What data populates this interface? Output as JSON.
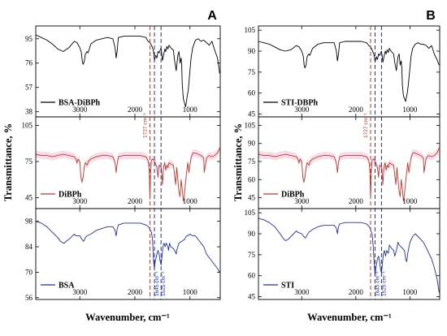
{
  "chart_data": [
    {
      "type": "line",
      "panel_label": "A",
      "xlabel": "Wavenumber, cm⁻¹",
      "ylabel": "Transmittance, %",
      "xlim": [
        3800,
        450
      ],
      "xticks": [
        3000,
        2000,
        1000
      ],
      "grid": false,
      "legend_position": "bottom-left",
      "annotations": [
        {
          "text": "1727 cm⁻¹",
          "x": 1727,
          "panel": 2,
          "color": "#c0392b"
        },
        {
          "text": "1645 cm⁻¹",
          "x": 1645,
          "panel": 3,
          "color": "#1f2fa0"
        },
        {
          "text": "1525 cm⁻¹",
          "x": 1525,
          "panel": 3,
          "color": "#1f2fa0"
        }
      ],
      "vlines": [
        {
          "x": 1727,
          "color": "#c0392b"
        },
        {
          "x": 1645,
          "color": "#1f2fa0"
        },
        {
          "x": 1525,
          "color": "#1f2fa0"
        }
      ],
      "subplots": [
        {
          "name": "BSA-DiBPh",
          "color": "#000000",
          "band": false,
          "ylim": [
            34,
            105
          ],
          "yticks": [
            38,
            57,
            76,
            95
          ],
          "x": [
            3800,
            3700,
            3600,
            3500,
            3400,
            3300,
            3200,
            3100,
            3050,
            3000,
            2970,
            2955,
            2940,
            2920,
            2900,
            2870,
            2850,
            2800,
            2700,
            2600,
            2500,
            2400,
            2360,
            2340,
            2320,
            2300,
            2200,
            2100,
            2000,
            1900,
            1800,
            1760,
            1727,
            1700,
            1680,
            1660,
            1645,
            1620,
            1600,
            1580,
            1560,
            1525,
            1500,
            1480,
            1455,
            1440,
            1420,
            1400,
            1380,
            1350,
            1300,
            1280,
            1250,
            1220,
            1200,
            1180,
            1160,
            1150,
            1140,
            1120,
            1100,
            1080,
            1070,
            1050,
            1030,
            1000,
            980,
            950,
            900,
            850,
            800,
            750,
            700,
            650,
            600,
            550,
            500,
            460
          ],
          "y": [
            98,
            96,
            94,
            91,
            87,
            85,
            88,
            93,
            92,
            88,
            84,
            77,
            75,
            77,
            83,
            85,
            84,
            91,
            94,
            95,
            96,
            95,
            88,
            80,
            86,
            96,
            97,
            97,
            97,
            97,
            96,
            93,
            92,
            90,
            88,
            85,
            78,
            82,
            80,
            85,
            84,
            88,
            78,
            82,
            87,
            85,
            89,
            87,
            90,
            88,
            86,
            78,
            70,
            82,
            85,
            76,
            80,
            74,
            60,
            48,
            45,
            42,
            44,
            50,
            55,
            70,
            80,
            88,
            94,
            95,
            93,
            94,
            92,
            90,
            93,
            86,
            80,
            68
          ]
        },
        {
          "name": "DiBPh",
          "color": "#c0392b",
          "band": true,
          "ylim": [
            36,
            112
          ],
          "yticks": [
            45,
            75,
            105
          ],
          "x": [
            3800,
            3700,
            3600,
            3500,
            3400,
            3300,
            3200,
            3100,
            3070,
            3050,
            3030,
            3000,
            2980,
            2960,
            2940,
            2920,
            2900,
            2880,
            2860,
            2850,
            2800,
            2700,
            2600,
            2500,
            2400,
            2360,
            2340,
            2320,
            2300,
            2200,
            2100,
            2000,
            1900,
            1800,
            1760,
            1740,
            1727,
            1715,
            1700,
            1680,
            1650,
            1600,
            1580,
            1560,
            1520,
            1500,
            1480,
            1460,
            1440,
            1420,
            1400,
            1380,
            1350,
            1300,
            1280,
            1260,
            1240,
            1200,
            1180,
            1160,
            1140,
            1120,
            1100,
            1080,
            1070,
            1050,
            1040,
            1020,
            1000,
            980,
            950,
            900,
            850,
            800,
            750,
            740,
            700,
            650,
            600,
            550,
            500,
            460
          ],
          "y": [
            81,
            80,
            80,
            79,
            80,
            81,
            80,
            79,
            77,
            74,
            77,
            75,
            62,
            58,
            62,
            70,
            74,
            73,
            72,
            75,
            77,
            79,
            80,
            80,
            79,
            74,
            66,
            74,
            79,
            80,
            80,
            80,
            80,
            79,
            76,
            68,
            44,
            66,
            76,
            77,
            76,
            70,
            62,
            72,
            70,
            56,
            70,
            74,
            68,
            72,
            70,
            74,
            73,
            72,
            64,
            56,
            70,
            50,
            46,
            60,
            52,
            42,
            48,
            58,
            62,
            70,
            74,
            66,
            72,
            78,
            82,
            82,
            81,
            80,
            78,
            66,
            78,
            80,
            79,
            80,
            82,
            86
          ]
        },
        {
          "name": "BSA",
          "color": "#1f2fa0",
          "band": false,
          "ylim": [
            55,
            105
          ],
          "yticks": [
            56,
            70,
            84,
            98
          ],
          "x": [
            3800,
            3700,
            3600,
            3500,
            3400,
            3350,
            3300,
            3280,
            3250,
            3200,
            3100,
            3070,
            3000,
            2960,
            2930,
            2900,
            2870,
            2800,
            2700,
            2600,
            2500,
            2400,
            2360,
            2340,
            2320,
            2300,
            2200,
            2100,
            2000,
            1900,
            1800,
            1750,
            1700,
            1680,
            1660,
            1645,
            1630,
            1600,
            1580,
            1560,
            1540,
            1525,
            1510,
            1490,
            1470,
            1450,
            1430,
            1400,
            1390,
            1370,
            1350,
            1300,
            1280,
            1250,
            1240,
            1220,
            1200,
            1150,
            1100,
            1080,
            1060,
            1040,
            1000,
            950,
            900,
            850,
            800,
            750,
            700,
            650,
            600,
            550,
            500,
            460
          ],
          "y": [
            98,
            97,
            95,
            92,
            89,
            87,
            86,
            86,
            87,
            88,
            91,
            90,
            90,
            88,
            87,
            89,
            90,
            91,
            93,
            94,
            95,
            95,
            93,
            90,
            94,
            96,
            97,
            97,
            97,
            97,
            96,
            95,
            92,
            88,
            76,
            72,
            76,
            80,
            82,
            80,
            76,
            74,
            78,
            84,
            86,
            84,
            86,
            84,
            82,
            86,
            84,
            83,
            82,
            80,
            82,
            84,
            86,
            87,
            88,
            89,
            90,
            90,
            91,
            90,
            90,
            88,
            86,
            84,
            80,
            78,
            76,
            74,
            72,
            70
          ]
        }
      ]
    },
    {
      "type": "line",
      "panel_label": "B",
      "xlabel": "Wavenumber, cm⁻¹",
      "ylabel": "Transmittance, %",
      "xlim": [
        3800,
        450
      ],
      "xticks": [
        3000,
        2000,
        1000
      ],
      "grid": false,
      "legend_position": "bottom-left",
      "annotations": [
        {
          "text": "1727 cm⁻¹",
          "x": 1727,
          "panel": 2,
          "color": "#c0392b"
        },
        {
          "text": "1645 cm⁻¹",
          "x": 1645,
          "panel": 3,
          "color": "#1f2fa0"
        },
        {
          "text": "1525 cm⁻¹",
          "x": 1525,
          "panel": 3,
          "color": "#1f2fa0"
        }
      ],
      "vlines": [
        {
          "x": 1727,
          "color": "#c0392b"
        },
        {
          "x": 1645,
          "color": "#1f2fa0"
        },
        {
          "x": 1525,
          "color": "#1f2fa0"
        }
      ],
      "subplots": [
        {
          "name": "STI-DBPh",
          "color": "#000000",
          "band": false,
          "ylim": [
            43,
            108
          ],
          "yticks": [
            45,
            60,
            75,
            90,
            105
          ],
          "x": [
            3800,
            3700,
            3600,
            3500,
            3400,
            3300,
            3200,
            3100,
            3050,
            3000,
            2970,
            2955,
            2940,
            2920,
            2900,
            2870,
            2850,
            2800,
            2700,
            2600,
            2500,
            2400,
            2360,
            2340,
            2320,
            2300,
            2200,
            2100,
            2000,
            1900,
            1800,
            1760,
            1727,
            1700,
            1680,
            1660,
            1645,
            1620,
            1600,
            1580,
            1560,
            1525,
            1500,
            1480,
            1455,
            1440,
            1420,
            1400,
            1380,
            1350,
            1300,
            1280,
            1250,
            1220,
            1200,
            1180,
            1160,
            1150,
            1140,
            1120,
            1100,
            1080,
            1070,
            1050,
            1030,
            1000,
            980,
            950,
            900,
            850,
            800,
            750,
            700,
            650,
            600,
            550,
            500,
            460
          ],
          "y": [
            97,
            96,
            95,
            93,
            91,
            90,
            91,
            94,
            93,
            90,
            86,
            80,
            78,
            80,
            86,
            88,
            87,
            92,
            95,
            96,
            96,
            96,
            90,
            83,
            88,
            96,
            97,
            97,
            97,
            97,
            96,
            94,
            93,
            91,
            89,
            87,
            82,
            86,
            84,
            88,
            87,
            90,
            82,
            86,
            90,
            88,
            91,
            89,
            92,
            90,
            88,
            82,
            76,
            86,
            88,
            80,
            83,
            78,
            66,
            58,
            56,
            54,
            56,
            60,
            66,
            78,
            86,
            92,
            95,
            96,
            95,
            95,
            94,
            92,
            94,
            88,
            84,
            80
          ]
        },
        {
          "name": "DiBPh",
          "color": "#c0392b",
          "band": true,
          "ylim": [
            36,
            112
          ],
          "yticks": [
            45,
            60,
            75,
            90,
            105
          ],
          "x": [
            3800,
            3700,
            3600,
            3500,
            3400,
            3300,
            3200,
            3100,
            3070,
            3050,
            3030,
            3000,
            2980,
            2960,
            2940,
            2920,
            2900,
            2880,
            2860,
            2850,
            2800,
            2700,
            2600,
            2500,
            2400,
            2360,
            2340,
            2320,
            2300,
            2200,
            2100,
            2000,
            1900,
            1800,
            1760,
            1740,
            1727,
            1715,
            1700,
            1680,
            1650,
            1600,
            1580,
            1560,
            1520,
            1500,
            1480,
            1460,
            1440,
            1420,
            1400,
            1380,
            1350,
            1300,
            1280,
            1260,
            1240,
            1200,
            1180,
            1160,
            1140,
            1120,
            1100,
            1080,
            1070,
            1050,
            1040,
            1020,
            1000,
            980,
            950,
            900,
            850,
            800,
            750,
            740,
            700,
            650,
            600,
            550,
            500,
            460
          ],
          "y": [
            81,
            80,
            80,
            79,
            80,
            81,
            80,
            79,
            77,
            74,
            77,
            75,
            62,
            58,
            62,
            70,
            74,
            73,
            72,
            75,
            77,
            79,
            80,
            80,
            79,
            74,
            66,
            74,
            79,
            80,
            80,
            80,
            80,
            79,
            76,
            68,
            44,
            66,
            76,
            77,
            76,
            70,
            62,
            72,
            70,
            56,
            70,
            74,
            68,
            72,
            70,
            74,
            73,
            72,
            64,
            56,
            70,
            50,
            46,
            60,
            52,
            42,
            48,
            58,
            62,
            70,
            74,
            66,
            72,
            78,
            82,
            82,
            81,
            80,
            78,
            66,
            78,
            80,
            79,
            80,
            82,
            86
          ]
        },
        {
          "name": "STI",
          "color": "#1f2fa0",
          "band": false,
          "ylim": [
            43,
            108
          ],
          "yticks": [
            45,
            60,
            75,
            90,
            105
          ],
          "x": [
            3800,
            3700,
            3600,
            3500,
            3400,
            3350,
            3300,
            3250,
            3200,
            3100,
            3070,
            3000,
            2960,
            2930,
            2900,
            2870,
            2800,
            2700,
            2600,
            2500,
            2400,
            2360,
            2340,
            2320,
            2300,
            2200,
            2100,
            2000,
            1900,
            1800,
            1750,
            1700,
            1680,
            1660,
            1645,
            1630,
            1600,
            1580,
            1560,
            1540,
            1525,
            1510,
            1490,
            1470,
            1450,
            1430,
            1400,
            1380,
            1350,
            1300,
            1280,
            1250,
            1220,
            1200,
            1150,
            1100,
            1080,
            1060,
            1040,
            1000,
            950,
            900,
            850,
            800,
            750,
            700,
            650,
            600,
            550,
            500,
            460
          ],
          "y": [
            101,
            100,
            98,
            95,
            90,
            87,
            85,
            86,
            88,
            92,
            91,
            90,
            88,
            87,
            89,
            91,
            93,
            95,
            96,
            96,
            96,
            94,
            90,
            95,
            97,
            98,
            98,
            98,
            98,
            97,
            95,
            90,
            82,
            68,
            60,
            66,
            72,
            74,
            70,
            64,
            62,
            68,
            76,
            78,
            74,
            78,
            76,
            82,
            80,
            78,
            74,
            78,
            84,
            82,
            80,
            78,
            72,
            70,
            76,
            84,
            88,
            90,
            88,
            86,
            84,
            80,
            76,
            72,
            66,
            58,
            48
          ]
        }
      ]
    }
  ]
}
